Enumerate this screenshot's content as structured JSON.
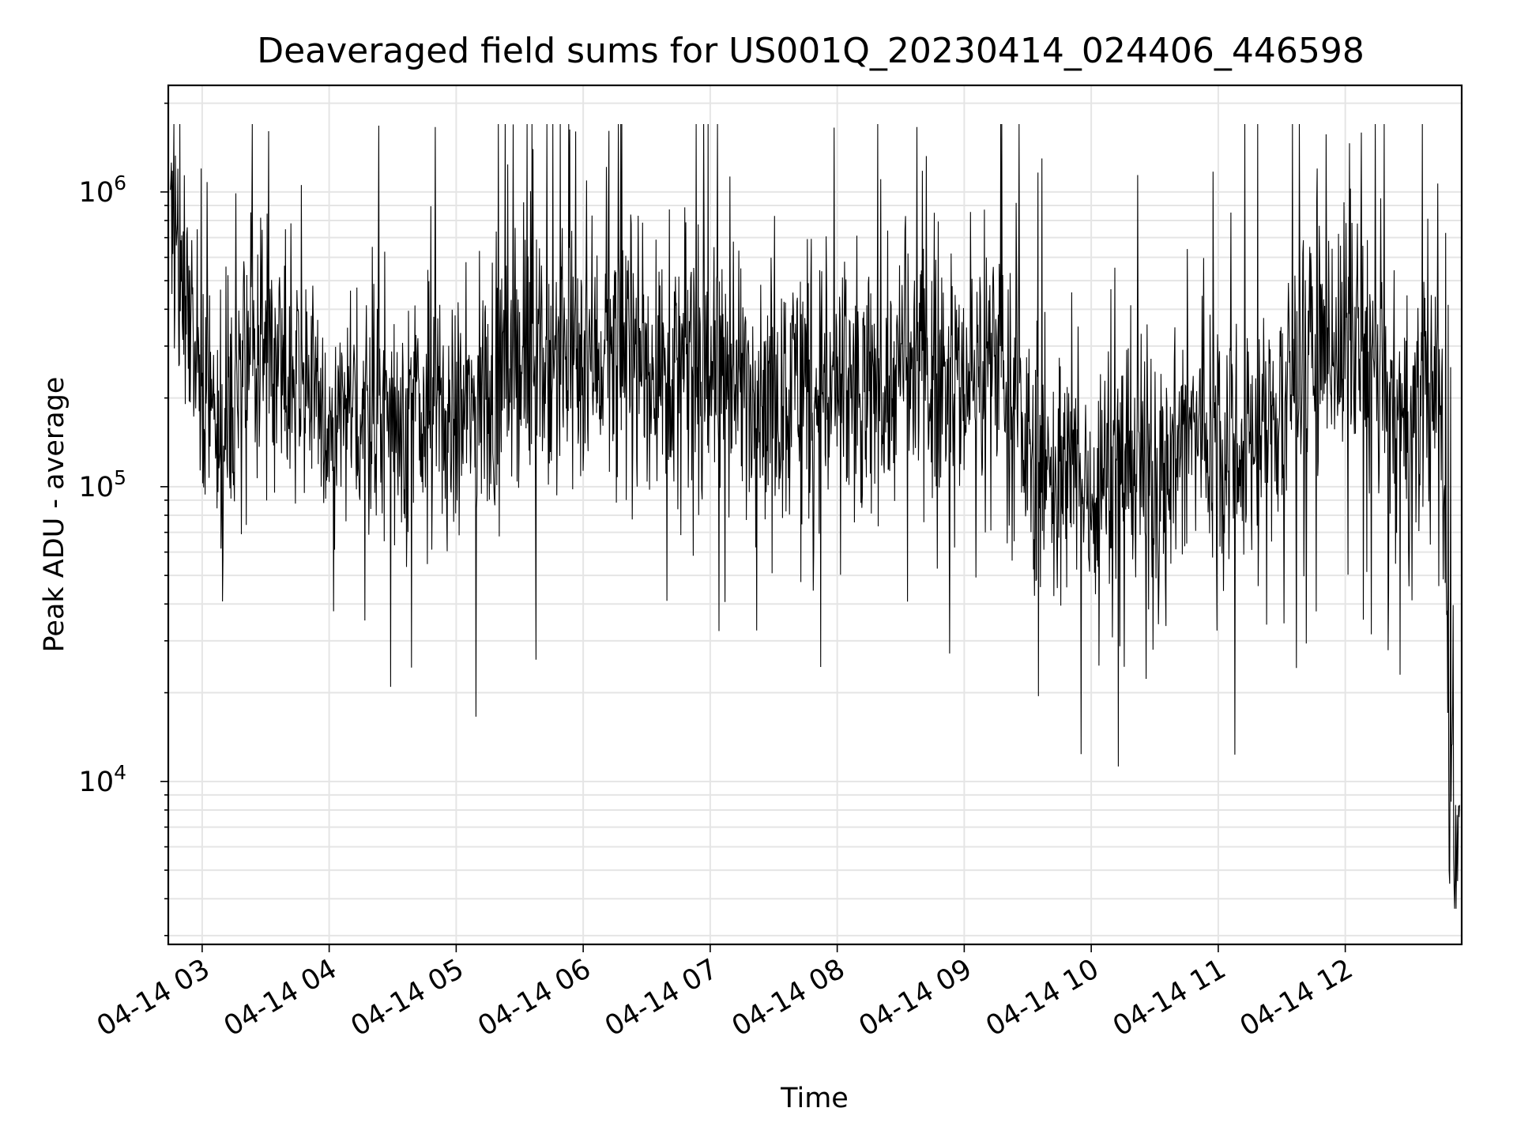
{
  "chart_data": {
    "type": "line",
    "title": "Deaveraged field sums for US001Q_20230414_024406_446598",
    "xlabel": "Time",
    "ylabel": "Peak ADU - average",
    "yscale": "log",
    "ylim": [
      2800,
      2300000
    ],
    "xlim": [
      "2023-04-14 02:44",
      "2023-04-14 12:55"
    ],
    "grid": true,
    "x_tick_labels": [
      "04-14 03",
      "04-14 04",
      "04-14 05",
      "04-14 06",
      "04-14 07",
      "04-14 08",
      "04-14 09",
      "04-14 10",
      "04-14 11",
      "04-14 12"
    ],
    "y_tick_labels": [
      {
        "base": "10",
        "exp": "4",
        "value": 10000
      },
      {
        "base": "10",
        "exp": "5",
        "value": 100000
      },
      {
        "base": "10",
        "exp": "6",
        "value": 1000000
      }
    ],
    "line_color": "#000000",
    "series": [
      {
        "x": [
          "2023-04-14 02:45",
          "2023-04-14 02:50",
          "2023-04-14 03:00",
          "2023-04-14 03:10",
          "2023-04-14 03:20",
          "2023-04-14 03:30",
          "2023-04-14 03:40",
          "2023-04-14 03:50",
          "2023-04-14 04:00",
          "2023-04-14 04:15",
          "2023-04-14 04:30",
          "2023-04-14 04:45",
          "2023-04-14 05:00",
          "2023-04-14 05:15",
          "2023-04-14 05:30",
          "2023-04-14 05:45",
          "2023-04-14 06:00",
          "2023-04-14 06:15",
          "2023-04-14 06:30",
          "2023-04-14 06:45",
          "2023-04-14 07:00",
          "2023-04-14 07:15",
          "2023-04-14 07:30",
          "2023-04-14 07:45",
          "2023-04-14 08:00",
          "2023-04-14 08:15",
          "2023-04-14 08:30",
          "2023-04-14 08:45",
          "2023-04-14 09:00",
          "2023-04-14 09:15",
          "2023-04-14 09:30",
          "2023-04-14 09:45",
          "2023-04-14 10:00",
          "2023-04-14 10:15",
          "2023-04-14 10:30",
          "2023-04-14 10:45",
          "2023-04-14 11:00",
          "2023-04-14 11:15",
          "2023-04-14 11:30",
          "2023-04-14 11:45",
          "2023-04-14 12:00",
          "2023-04-14 12:10",
          "2023-04-14 12:20",
          "2023-04-14 12:30",
          "2023-04-14 12:35",
          "2023-04-14 12:40",
          "2023-04-14 12:44",
          "2023-04-14 12:46",
          "2023-04-14 12:48",
          "2023-04-14 12:50",
          "2023-04-14 12:52",
          "2023-04-14 12:54"
        ],
        "y": [
          650000,
          550000,
          200000,
          180000,
          250000,
          330000,
          300000,
          230000,
          150000,
          200000,
          190000,
          170000,
          160000,
          210000,
          280000,
          260000,
          280000,
          300000,
          270000,
          240000,
          250000,
          230000,
          210000,
          240000,
          210000,
          200000,
          240000,
          260000,
          230000,
          300000,
          130000,
          110000,
          100000,
          130000,
          110000,
          150000,
          160000,
          140000,
          180000,
          330000,
          310000,
          300000,
          170000,
          150000,
          190000,
          210000,
          180000,
          130000,
          40000,
          12000,
          6000,
          12000
        ]
      }
    ]
  }
}
